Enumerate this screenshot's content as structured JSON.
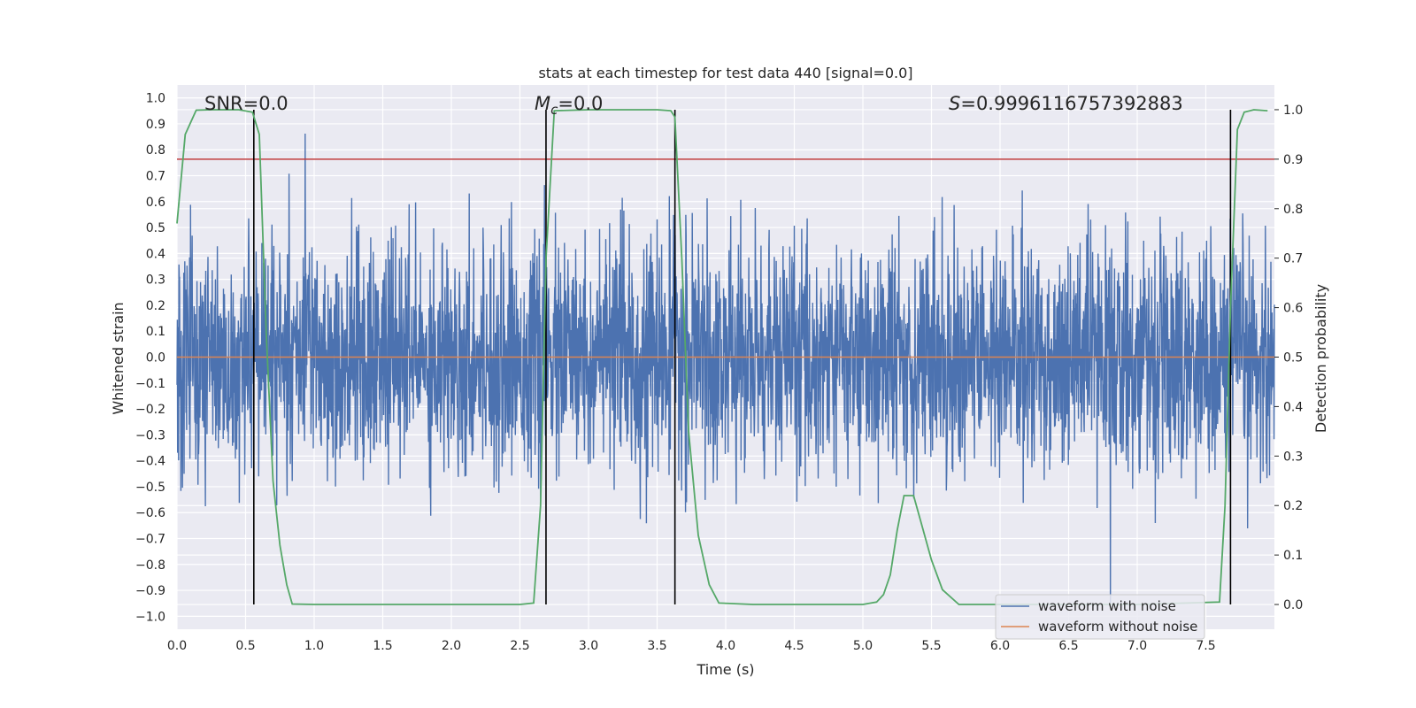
{
  "chart_data": {
    "type": "line",
    "title": "stats at each timestep for test data 440 [signal=0.0]",
    "xlabel": "Time (s)",
    "ylabel": "Whitened strain",
    "y2label": "Detection probability",
    "xlim": [
      0.0,
      8.0
    ],
    "ylim": [
      -1.05,
      1.05
    ],
    "y2lim": [
      -0.05,
      1.05
    ],
    "xticks": [
      "0.0",
      "0.5",
      "1.0",
      "1.5",
      "2.0",
      "2.5",
      "3.0",
      "3.5",
      "4.0",
      "4.5",
      "5.0",
      "5.5",
      "6.0",
      "6.5",
      "7.0",
      "7.5"
    ],
    "yticks": [
      "1.0",
      "0.9",
      "0.8",
      "0.7",
      "0.6",
      "0.5",
      "0.4",
      "0.3",
      "0.2",
      "0.1",
      "0.0",
      "-0.1",
      "-0.2",
      "-0.3",
      "-0.4",
      "-0.5",
      "-0.6",
      "-0.7",
      "-0.8",
      "-0.9",
      "-1.0"
    ],
    "y2ticks": [
      "1.0",
      "0.9",
      "0.8",
      "0.7",
      "0.6",
      "0.5",
      "0.4",
      "0.3",
      "0.2",
      "0.1",
      "0.0"
    ],
    "annotations": {
      "snr": "SNR=0.0",
      "mc_symbol": "M",
      "mc_sub": "c",
      "mc_value": "=0.0",
      "s_symbol": "S",
      "s_value": "=0.9996116757392883"
    },
    "threshold": {
      "axis": "right",
      "value": 0.9,
      "color": "#c03d3e"
    },
    "vertical_lines": [
      0.56,
      2.69,
      3.63,
      7.68
    ],
    "series": [
      {
        "name": "waveform with noise",
        "color": "#4c72b0",
        "axis": "left",
        "kind": "noise",
        "amplitude_rms": 0.22,
        "peak": 1.0,
        "trough": -0.95
      },
      {
        "name": "waveform without noise",
        "color": "#dd8452",
        "axis": "left",
        "x": [
          0.0,
          8.0
        ],
        "y": [
          0.0,
          0.0
        ]
      },
      {
        "name": "detection probability",
        "color": "#55a868",
        "axis": "right",
        "show_in_legend": false,
        "x": [
          0.0,
          0.06,
          0.14,
          0.25,
          0.45,
          0.55,
          0.6,
          0.65,
          0.7,
          0.75,
          0.8,
          0.84,
          1.0,
          2.0,
          2.5,
          2.6,
          2.65,
          2.69,
          2.75,
          3.0,
          3.5,
          3.6,
          3.63,
          3.68,
          3.73,
          3.8,
          3.88,
          3.95,
          4.2,
          5.0,
          5.1,
          5.15,
          5.2,
          5.25,
          5.3,
          5.37,
          5.42,
          5.5,
          5.58,
          5.7,
          6.0,
          7.0,
          7.6,
          7.64,
          7.68,
          7.73,
          7.78,
          7.85,
          7.95
        ],
        "y": [
          0.77,
          0.95,
          0.999,
          1.0,
          1.0,
          0.995,
          0.95,
          0.55,
          0.25,
          0.12,
          0.04,
          0.001,
          0.0,
          0.0,
          0.0,
          0.003,
          0.2,
          0.7,
          0.998,
          1.0,
          1.0,
          0.998,
          0.985,
          0.7,
          0.35,
          0.14,
          0.04,
          0.003,
          0.0,
          0.0,
          0.005,
          0.02,
          0.06,
          0.15,
          0.22,
          0.22,
          0.17,
          0.09,
          0.03,
          0.0,
          0.0,
          0.0,
          0.005,
          0.2,
          0.6,
          0.96,
          0.995,
          1.0,
          0.998
        ]
      }
    ],
    "legend": {
      "position": "lower-right",
      "entries": [
        {
          "label": "waveform with noise",
          "color": "#4c72b0"
        },
        {
          "label": "waveform without noise",
          "color": "#dd8452"
        }
      ]
    },
    "style": {
      "plot_background": "#eaeaf2",
      "grid": true,
      "grid_color": "#ffffff",
      "vline_color": "#000000"
    }
  }
}
